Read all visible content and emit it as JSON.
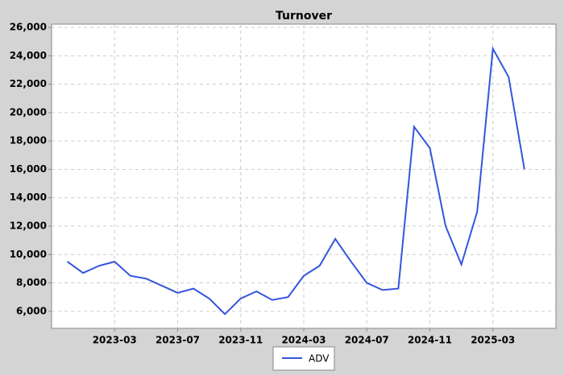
{
  "chart_data": {
    "type": "line",
    "title": "Turnover",
    "x": [
      "2022-12",
      "2023-01",
      "2023-02",
      "2023-03",
      "2023-04",
      "2023-05",
      "2023-06",
      "2023-07",
      "2023-08",
      "2023-09",
      "2023-10",
      "2023-11",
      "2023-12",
      "2024-01",
      "2024-02",
      "2024-03",
      "2024-04",
      "2024-05",
      "2024-06",
      "2024-07",
      "2024-08",
      "2024-09",
      "2024-10",
      "2024-11",
      "2024-12",
      "2025-01",
      "2025-02",
      "2025-03",
      "2025-04",
      "2025-05"
    ],
    "series": [
      {
        "name": "ADV",
        "color": "#3355dd",
        "values": [
          9500,
          8700,
          9200,
          9500,
          8500,
          8300,
          7800,
          7300,
          7600,
          6900,
          5800,
          6900,
          7400,
          6800,
          7000,
          8500,
          9200,
          11100,
          9500,
          8000,
          7500,
          7600,
          19000,
          17500,
          12000,
          9300,
          13000,
          24500,
          22500,
          16000
        ]
      }
    ],
    "xlim": [
      "2022-11",
      "2025-07"
    ],
    "xticks": [
      "2023-03",
      "2023-07",
      "2023-11",
      "2024-03",
      "2024-07",
      "2024-11",
      "2025-03"
    ],
    "ylim": [
      4800,
      26230
    ],
    "yticks": [
      {
        "value": 6000,
        "label": "6,000"
      },
      {
        "value": 8000,
        "label": "8,000"
      },
      {
        "value": 10000,
        "label": "10,000"
      },
      {
        "value": 12000,
        "label": "12,000"
      },
      {
        "value": 14000,
        "label": "14,000"
      },
      {
        "value": 16000,
        "label": "16,000"
      },
      {
        "value": 18000,
        "label": "18,000"
      },
      {
        "value": 20000,
        "label": "20,000"
      },
      {
        "value": 22000,
        "label": "22,000"
      },
      {
        "value": 24000,
        "label": "24,000"
      },
      {
        "value": 26000,
        "label": "26,000"
      }
    ],
    "grid": true
  }
}
